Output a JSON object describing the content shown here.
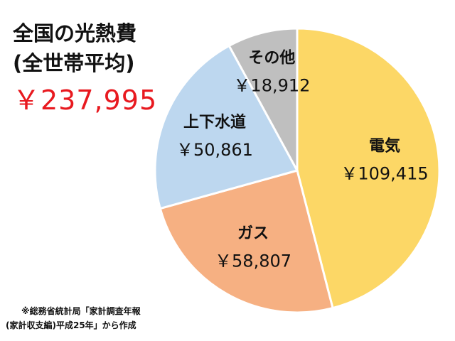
{
  "header": {
    "title_line1": "全国の光熱費",
    "title_line2": "(全世帯平均)",
    "total": "￥237,995"
  },
  "source": {
    "line1": "※総務省統計局「家計調査年報",
    "line2": "(家計収支編)平成25年」から作成"
  },
  "chart_data": {
    "type": "pie",
    "start_angle_deg": 0,
    "direction": "clockwise",
    "slices": [
      {
        "name": "電気",
        "value": 109415,
        "label": "￥109,415",
        "color": "#fcd766"
      },
      {
        "name": "ガス",
        "value": 58807,
        "label": "￥58,807",
        "color": "#f6b082"
      },
      {
        "name": "上下水道",
        "value": 50861,
        "label": "￥50,861",
        "color": "#bdd7ef"
      },
      {
        "name": "その他",
        "value": 18912,
        "label": "￥18,912",
        "color": "#bfbfbf"
      }
    ]
  }
}
